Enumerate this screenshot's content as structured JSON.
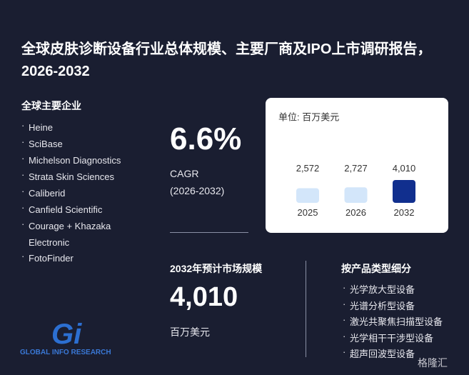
{
  "title": "全球皮肤诊断设备行业总体规模、主要厂商及IPO上市调研报告，2026-2032",
  "companies": {
    "heading": "全球主要企业",
    "items": [
      "Heine",
      "SciBase",
      "Michelson Diagnostics",
      "Strata Skin Sciences",
      "Caliberid",
      "Canfield Scientific",
      "Courage + Khazaka Electronic",
      "FotoFinder"
    ]
  },
  "cagr": {
    "value": "6.6%",
    "label": "CAGR",
    "period": "(2026-2032)"
  },
  "chart_data": {
    "type": "bar",
    "unit_label": "单位: 百万美元",
    "categories": [
      "2025",
      "2026",
      "2032"
    ],
    "values": [
      2572,
      2727,
      4010
    ],
    "value_labels": [
      "2,572",
      "2,727",
      "4,010"
    ],
    "colors": [
      "#d3e6fa",
      "#d3e6fa",
      "#112f8e"
    ]
  },
  "market_size": {
    "heading": "2032年预计市场规模",
    "value": "4,010",
    "unit": "百万美元"
  },
  "segments": {
    "heading": "按产品类型细分",
    "items": [
      "光学放大型设备",
      "光谱分析型设备",
      "激光共聚焦扫描型设备",
      "光学相干干涉型设备",
      "超声回波型设备"
    ]
  },
  "brand": {
    "logo": "Gi",
    "name": "GLOBAL INFO RESEARCH",
    "watermark": "格隆汇"
  }
}
